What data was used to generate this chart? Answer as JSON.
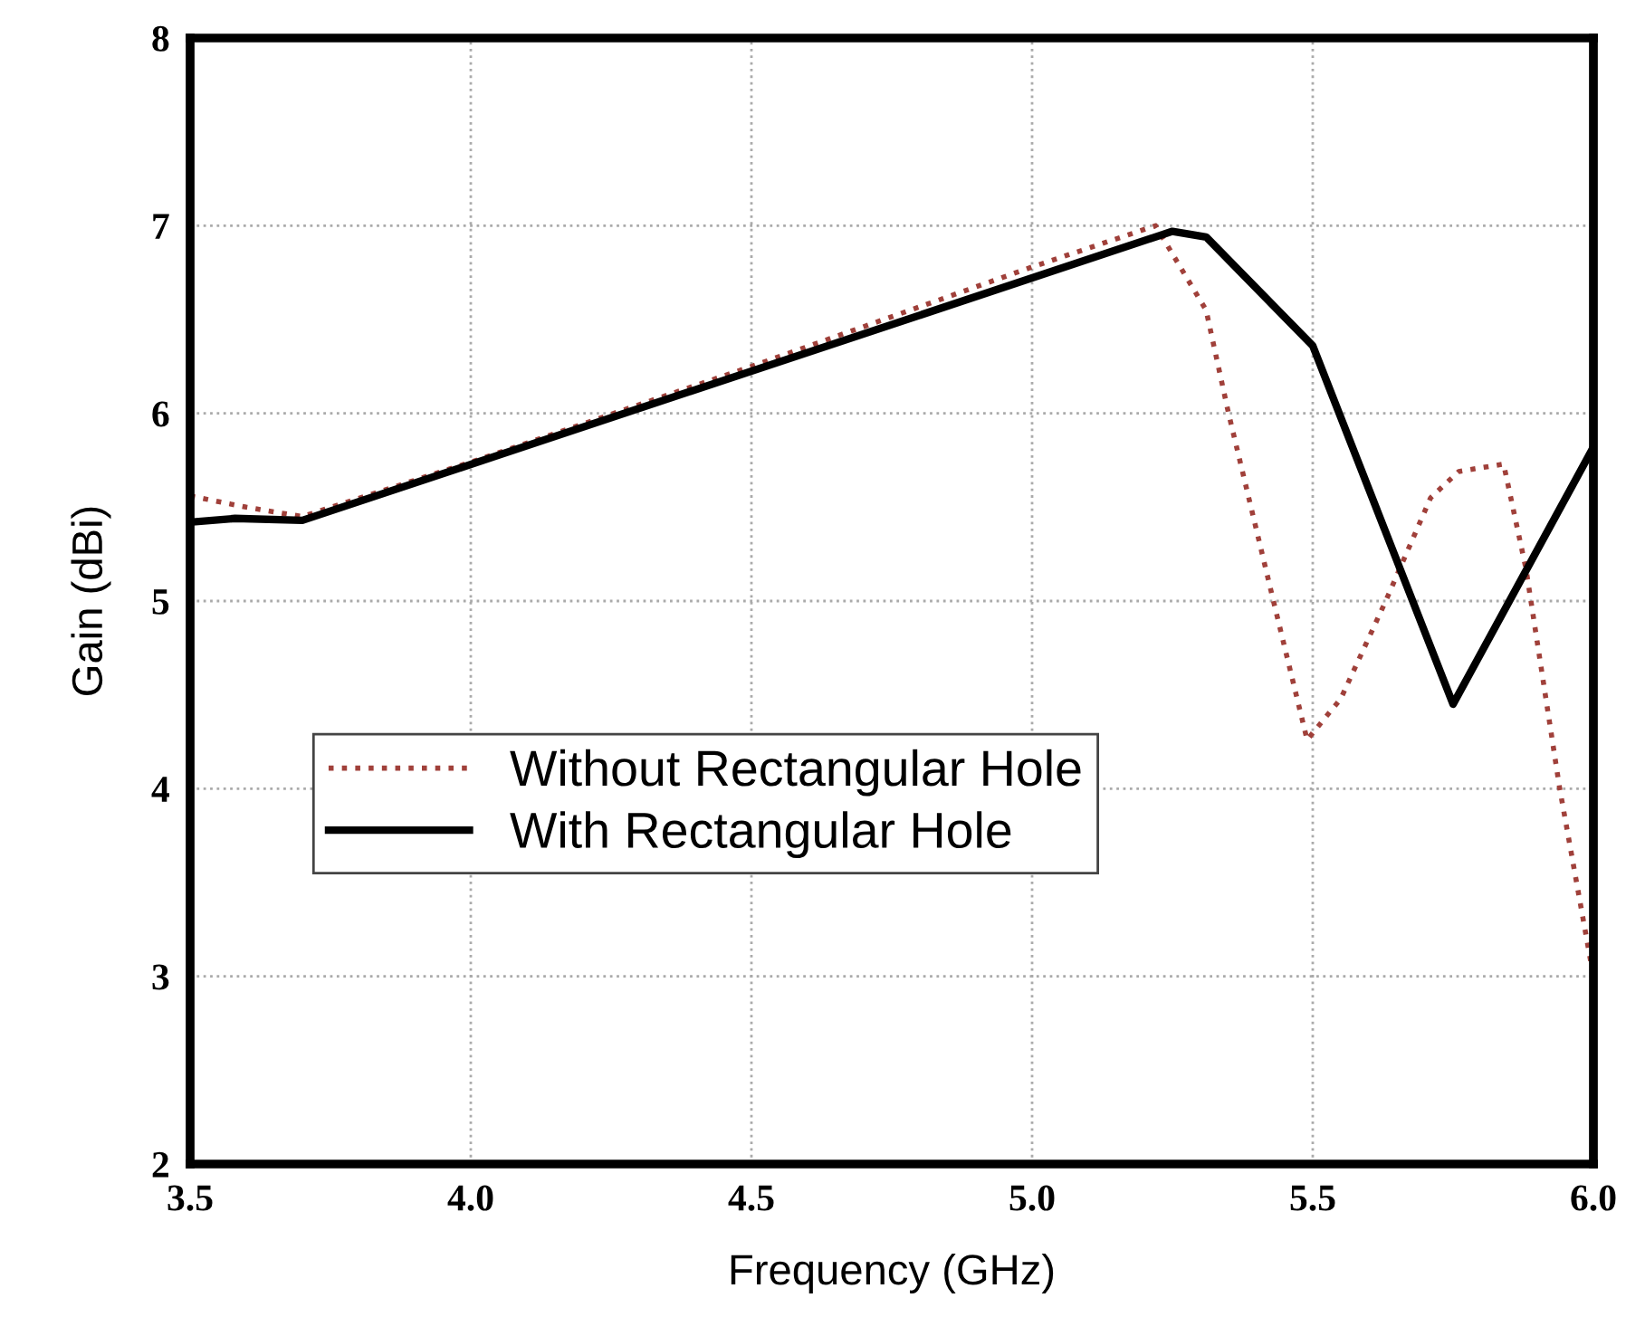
{
  "chart_data": {
    "type": "line",
    "xlabel": "Frequency (GHz)",
    "ylabel": "Gain (dBi)",
    "xlim": [
      3.5,
      6.0
    ],
    "xticks": [
      {
        "value": 3.5,
        "label": "3.5"
      },
      {
        "value": 4.0,
        "label": "4.0"
      },
      {
        "value": 4.5,
        "label": "4.5"
      },
      {
        "value": 5.0,
        "label": "5.0"
      },
      {
        "value": 5.5,
        "label": "5.5"
      },
      {
        "value": 6.0,
        "label": "6.0"
      }
    ],
    "ylim": [
      2,
      8
    ],
    "yticks": [
      2,
      3,
      4,
      5,
      6,
      7,
      8
    ],
    "grid": true,
    "legend": "left",
    "series": [
      {
        "name": "Without Rectangular Hole",
        "color": "#a0403a",
        "line_style": "dotted",
        "x": [
          3.5,
          3.6,
          3.7,
          4.0,
          4.5,
          5.0,
          5.22,
          5.31,
          5.35,
          5.43,
          5.49,
          5.55,
          5.63,
          5.71,
          5.76,
          5.84,
          5.88,
          5.94,
          6.0
        ],
        "values": [
          5.56,
          5.5,
          5.45,
          5.74,
          6.25,
          6.78,
          7.0,
          6.55,
          6.0,
          5.0,
          4.26,
          4.48,
          5.0,
          5.55,
          5.69,
          5.73,
          5.17,
          4.0,
          3.0
        ]
      },
      {
        "name": "With Rectangular Hole",
        "color": "#000000",
        "line_style": "solid",
        "x": [
          3.5,
          3.58,
          3.7,
          5.25,
          5.31,
          5.5,
          5.75,
          6.0
        ],
        "values": [
          5.42,
          5.44,
          5.43,
          6.97,
          6.94,
          6.36,
          4.45,
          5.82
        ]
      }
    ]
  }
}
